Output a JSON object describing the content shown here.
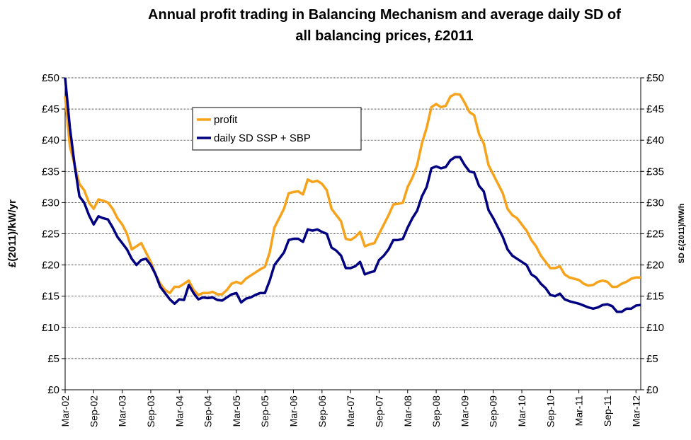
{
  "chart_data": {
    "type": "line",
    "title": "Annual profit trading in Balancing Mechanism and average daily SD of all balancing prices, £2011",
    "y_label": "£(2011)/kW/yr",
    "y2_label": "SD £(2011)/MWh",
    "categories": [
      "Mar-02",
      null,
      null,
      null,
      null,
      null,
      "Sep-02",
      null,
      null,
      null,
      null,
      null,
      "Mar-03",
      null,
      null,
      null,
      null,
      null,
      "Sep-03",
      null,
      null,
      null,
      null,
      null,
      "Mar-04",
      null,
      null,
      null,
      null,
      null,
      "Sep-04",
      null,
      null,
      null,
      null,
      null,
      "Mar-05",
      null,
      null,
      null,
      null,
      null,
      "Sep-05",
      null,
      null,
      null,
      null,
      null,
      "Mar-06",
      null,
      null,
      null,
      null,
      null,
      "Sep-06",
      null,
      null,
      null,
      null,
      null,
      "Mar-07",
      null,
      null,
      null,
      null,
      null,
      "Sep-07",
      null,
      null,
      null,
      null,
      null,
      "Mar-08",
      null,
      null,
      null,
      null,
      null,
      "Sep-08",
      null,
      null,
      null,
      null,
      null,
      "Mar-09",
      null,
      null,
      null,
      null,
      null,
      "Sep-09",
      null,
      null,
      null,
      null,
      null,
      "Mar-10",
      null,
      null,
      null,
      null,
      null,
      "Sep-10",
      null,
      null,
      null,
      null,
      null,
      "Mar-11",
      null,
      null,
      null,
      null,
      null,
      "Sep-11",
      null,
      null,
      null,
      null,
      null,
      "Mar-12",
      null
    ],
    "series": [
      {
        "name": "profit",
        "color": "#f7a21b",
        "values": [
          47,
          39,
          36,
          33,
          32,
          30,
          29,
          30.5,
          30.3,
          30,
          29,
          27.5,
          26.5,
          25,
          22.5,
          23,
          23.5,
          22,
          20.5,
          18.5,
          17,
          16,
          15.5,
          16.5,
          16.5,
          17,
          17.5,
          16,
          15.2,
          15.5,
          15.5,
          15.7,
          15.3,
          15.3,
          16,
          17,
          17.3,
          17,
          17.8,
          18.3,
          18.8,
          19.3,
          19.7,
          22,
          26,
          27.5,
          29,
          31.5,
          31.7,
          31.8,
          31.3,
          33.7,
          33.3,
          33.5,
          33,
          32,
          29,
          28,
          27,
          24.2,
          24,
          24.5,
          25.3,
          23,
          23.3,
          23.5,
          25,
          26.5,
          28,
          29.7,
          29.8,
          30,
          32.5,
          34,
          36,
          39.5,
          42,
          45.3,
          45.8,
          45.3,
          45.5,
          47,
          47.4,
          47.3,
          46,
          44.5,
          44,
          41,
          39.5,
          36,
          34.5,
          33,
          31.5,
          29,
          28,
          27.5,
          26.5,
          25.5,
          24,
          23,
          21.5,
          20.5,
          19.5,
          19.5,
          19.8,
          18.5,
          18,
          17.8,
          17.6,
          17,
          16.7,
          16.8,
          17.3,
          17.5,
          17.3,
          16.5,
          16.5,
          17,
          17.3,
          17.8,
          18,
          18
        ]
      },
      {
        "name": "daily SD SSP + SBP",
        "color": "#000080",
        "axis": "y2",
        "values": [
          50,
          42,
          36,
          31,
          30,
          28,
          26.5,
          27.8,
          27.5,
          27.3,
          26,
          24.5,
          23.5,
          22.5,
          21,
          20,
          20.8,
          21,
          20,
          18.5,
          16.5,
          15.5,
          14.5,
          13.8,
          14.5,
          14.4,
          16.8,
          15.5,
          14.5,
          14.8,
          14.7,
          14.8,
          14.4,
          14.3,
          14.8,
          15.3,
          15.5,
          14,
          14.6,
          14.8,
          15.2,
          15.5,
          15.5,
          17.5,
          20,
          21,
          22,
          24,
          24.2,
          24.2,
          23.7,
          25.7,
          25.5,
          25.7,
          25.3,
          25,
          22.8,
          22.3,
          21.5,
          19.5,
          19.5,
          19.8,
          20.5,
          18.5,
          18.8,
          19,
          20.8,
          21.5,
          22.5,
          24,
          24,
          24.2,
          26,
          27.5,
          28.7,
          31,
          32.5,
          35.5,
          35.8,
          35.5,
          35.7,
          36.8,
          37.3,
          37.3,
          36,
          35,
          34.8,
          32.7,
          31.8,
          28.8,
          27.5,
          26,
          24.5,
          22.5,
          21.5,
          21,
          20.5,
          20,
          18.5,
          18,
          17,
          16.3,
          15.2,
          15,
          15.4,
          14.5,
          14.2,
          14,
          13.8,
          13.5,
          13.2,
          13,
          13.2,
          13.6,
          13.7,
          13.4,
          12.5,
          12.5,
          13,
          13,
          13.5,
          13.6
        ]
      }
    ],
    "ylim": [
      0,
      50
    ],
    "yticks": [
      {
        "value": 0,
        "label": "£0"
      },
      {
        "value": 5,
        "label": "£5"
      },
      {
        "value": 10,
        "label": "£10"
      },
      {
        "value": 15,
        "label": "£15"
      },
      {
        "value": 20,
        "label": "£20"
      },
      {
        "value": 25,
        "label": "£25"
      },
      {
        "value": 30,
        "label": "£30"
      },
      {
        "value": 35,
        "label": "£35"
      },
      {
        "value": 40,
        "label": "£40"
      },
      {
        "value": 45,
        "label": "£45"
      },
      {
        "value": 50,
        "label": "£50"
      }
    ],
    "y2lim": [
      0,
      50
    ],
    "y2ticks": [
      {
        "value": 0,
        "label": "£0"
      },
      {
        "value": 5,
        "label": "£5"
      },
      {
        "value": 10,
        "label": "£10"
      },
      {
        "value": 15,
        "label": "£15"
      },
      {
        "value": 20,
        "label": "£20"
      },
      {
        "value": 25,
        "label": "£25"
      },
      {
        "value": 30,
        "label": "£30"
      },
      {
        "value": 35,
        "label": "£35"
      },
      {
        "value": 40,
        "label": "£40"
      },
      {
        "value": 45,
        "label": "£45"
      },
      {
        "value": 50,
        "label": "£50"
      }
    ],
    "grid": true,
    "legend": "top-left"
  }
}
